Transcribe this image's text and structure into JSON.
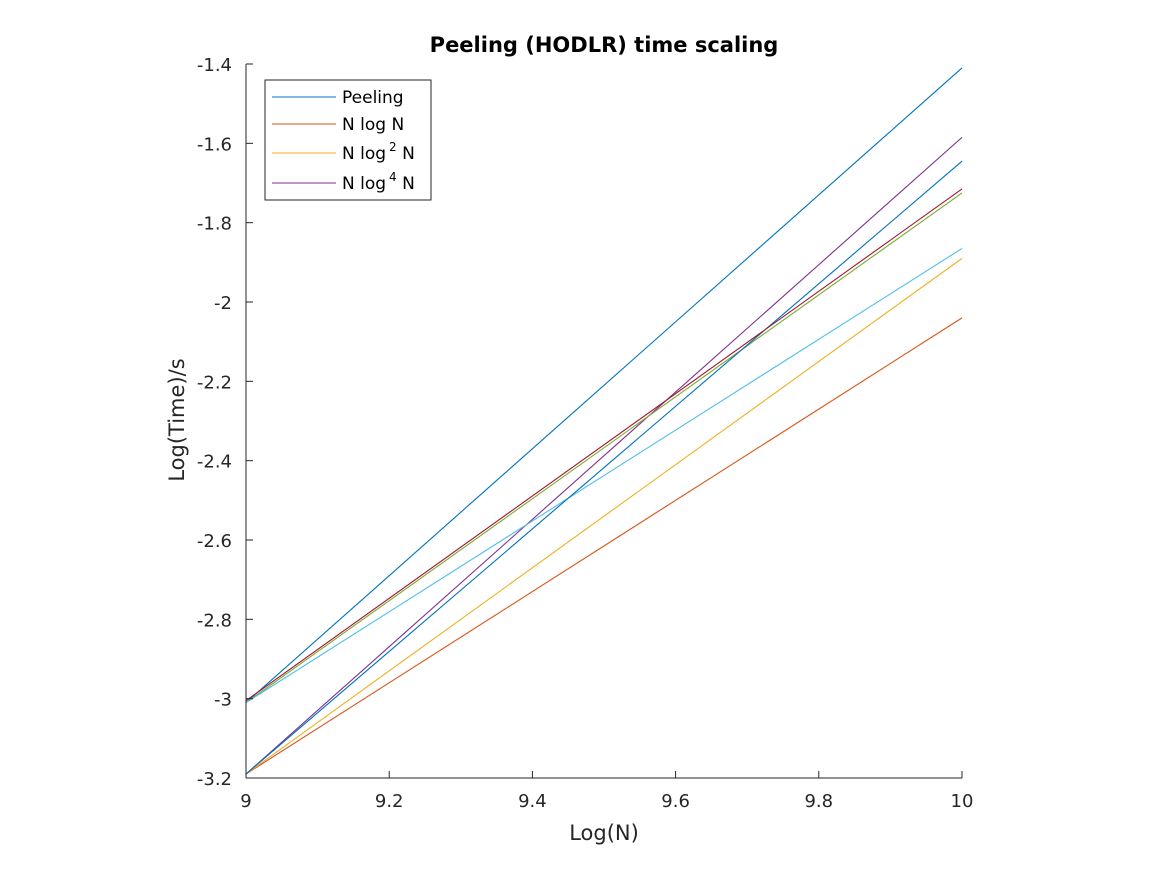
{
  "chart_data": {
    "type": "line",
    "title": "Peeling (HODLR) time scaling",
    "xlabel": "Log(N)",
    "ylabel": "Log(Time)/s",
    "xlim": [
      9,
      10
    ],
    "ylim": [
      -3.2,
      -1.4
    ],
    "xticks": [
      9,
      9.2,
      9.4,
      9.6,
      9.8,
      10
    ],
    "xtick_labels": [
      "9",
      "9.2",
      "9.4",
      "9.6",
      "9.8",
      "10"
    ],
    "yticks": [
      -3.2,
      -3,
      -2.8,
      -2.6,
      -2.4,
      -2.2,
      -2,
      -1.8,
      -1.6,
      -1.4
    ],
    "ytick_labels": [
      "-3.2",
      "-3",
      "-2.8",
      "-2.6",
      "-2.4",
      "-2.2",
      "-2",
      "-1.8",
      "-1.6",
      "-1.4"
    ],
    "grid": false,
    "legend_position": "top-left",
    "legend": [
      {
        "base": "N log",
        "power": "",
        "suffix": "",
        "text": "Peeling",
        "color": "#0072BD"
      },
      {
        "base": "N log N",
        "power": "",
        "suffix": "",
        "text": "N log N",
        "color": "#D95319"
      },
      {
        "base": "N log",
        "power": "2",
        "suffix": " N",
        "color": "#EDB120"
      },
      {
        "base": "N log",
        "power": "4",
        "suffix": " N",
        "color": "#7E2F8E"
      }
    ],
    "series": [
      {
        "name": "Peeling",
        "color": "#0072BD",
        "x": [
          9,
          10
        ],
        "y": [
          -3.01,
          -1.41
        ]
      },
      {
        "name": "N log N",
        "color": "#D95319",
        "x": [
          9,
          10
        ],
        "y": [
          -3.19,
          -2.04
        ]
      },
      {
        "name": "N log² N",
        "color": "#EDB120",
        "x": [
          9,
          10
        ],
        "y": [
          -3.19,
          -1.89
        ]
      },
      {
        "name": "N log⁴ N",
        "color": "#7E2F8E",
        "x": [
          9,
          10
        ],
        "y": [
          -3.19,
          -1.585
        ]
      },
      {
        "color": "#77AC30",
        "x": [
          9,
          10
        ],
        "y": [
          -3.01,
          -1.725
        ]
      },
      {
        "color": "#4DBEEE",
        "x": [
          9,
          10
        ],
        "y": [
          -3.01,
          -1.865
        ]
      },
      {
        "color": "#0072BD",
        "x": [
          9,
          10
        ],
        "y": [
          -3.19,
          -1.645
        ]
      },
      {
        "color": "#A2142F",
        "x": [
          9,
          10
        ],
        "y": [
          -3.005,
          -1.715
        ]
      }
    ]
  }
}
